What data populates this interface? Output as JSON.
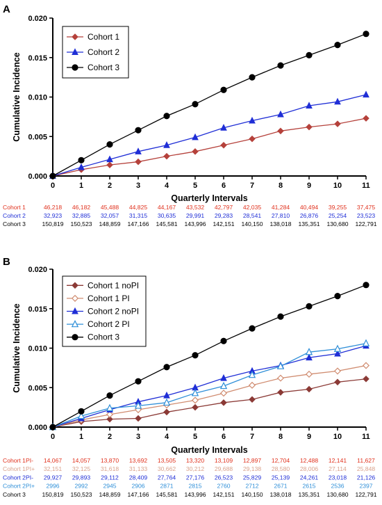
{
  "chart_data": [
    {
      "panel_label": "A",
      "type": "line",
      "xlabel": "Quarterly Intervals",
      "ylabel": "Cumulative Incidence",
      "x": [
        0,
        1,
        2,
        3,
        4,
        5,
        6,
        7,
        8,
        9,
        10,
        11
      ],
      "xlim": [
        0,
        11
      ],
      "ylim": [
        0,
        0.02
      ],
      "yticks": [
        "0.000",
        "0.005",
        "0.010",
        "0.015",
        "0.020"
      ],
      "yticks_values": [
        0,
        0.005,
        0.01,
        0.015,
        0.02
      ],
      "legend": "top-left",
      "series": [
        {
          "name": "Cohort 1",
          "color": "#b5413b",
          "marker": "diamond",
          "values": [
            0,
            0.0008,
            0.0014,
            0.0018,
            0.0025,
            0.0031,
            0.0039,
            0.0047,
            0.0057,
            0.0062,
            0.0066,
            0.0073
          ]
        },
        {
          "name": "Cohort 2",
          "color": "#1f2ed6",
          "marker": "triangle",
          "values": [
            0,
            0.0011,
            0.0021,
            0.0031,
            0.0039,
            0.0049,
            0.0061,
            0.007,
            0.0078,
            0.0089,
            0.0094,
            0.0103
          ]
        },
        {
          "name": "Cohort 3",
          "color": "#000000",
          "marker": "circle",
          "values": [
            0,
            0.002,
            0.004,
            0.0058,
            0.0076,
            0.0091,
            0.0109,
            0.0125,
            0.014,
            0.0153,
            0.0166,
            0.018
          ]
        }
      ],
      "table": {
        "rows": [
          {
            "label": "Cohort 1",
            "color": "#e0311d",
            "values": [
              "46,218",
              "46,182",
              "45,488",
              "44,825",
              "44,167",
              "43,532",
              "42,797",
              "42,035",
              "41,284",
              "40,494",
              "39,255",
              "37,475"
            ]
          },
          {
            "label": "Cohort 2",
            "color": "#1f2ed6",
            "values": [
              "32,923",
              "32,885",
              "32,057",
              "31,315",
              "30,635",
              "29,991",
              "29,283",
              "28,541",
              "27,810",
              "26,876",
              "25,254",
              "23,523"
            ]
          },
          {
            "label": "Cohort 3",
            "color": "#000000",
            "values": [
              "150,819",
              "150,523",
              "148,859",
              "147,166",
              "145,581",
              "143,996",
              "142,151",
              "140,150",
              "138,018",
              "135,351",
              "130,680",
              "122,791"
            ]
          }
        ]
      }
    },
    {
      "panel_label": "B",
      "type": "line",
      "xlabel": "Quarterly Intervals",
      "ylabel": "Cumulative Incidence",
      "x": [
        0,
        1,
        2,
        3,
        4,
        5,
        6,
        7,
        8,
        9,
        10,
        11
      ],
      "xlim": [
        0,
        11
      ],
      "ylim": [
        0,
        0.02
      ],
      "yticks": [
        "0.000",
        "0.005",
        "0.010",
        "0.015",
        "0.020"
      ],
      "yticks_values": [
        0,
        0.005,
        0.01,
        0.015,
        0.02
      ],
      "legend": "top-left",
      "series": [
        {
          "name": "Cohort 1 noPI",
          "color": "#8b3a36",
          "marker": "diamond",
          "values": [
            0,
            0.0007,
            0.001,
            0.0011,
            0.0019,
            0.0025,
            0.0031,
            0.0035,
            0.0044,
            0.0048,
            0.0057,
            0.0061
          ]
        },
        {
          "name": "Cohort 1 PI",
          "color": "#d08c70",
          "marker": "diamond-open",
          "values": [
            0,
            0.0009,
            0.0016,
            0.0022,
            0.0028,
            0.0034,
            0.0043,
            0.0053,
            0.0062,
            0.0067,
            0.0071,
            0.0078
          ]
        },
        {
          "name": "Cohort 2 noPI",
          "color": "#1f2ed6",
          "marker": "triangle",
          "values": [
            0,
            0.0011,
            0.0022,
            0.0032,
            0.004,
            0.005,
            0.0062,
            0.0071,
            0.0078,
            0.0088,
            0.0093,
            0.0103
          ]
        },
        {
          "name": "Cohort 2 PI",
          "color": "#2f8fd8",
          "marker": "triangle-open",
          "values": [
            0,
            0.0014,
            0.0024,
            0.0027,
            0.0031,
            0.0043,
            0.0052,
            0.0066,
            0.0077,
            0.0095,
            0.0099,
            0.0106
          ]
        },
        {
          "name": "Cohort 3",
          "color": "#000000",
          "marker": "circle",
          "values": [
            0,
            0.002,
            0.004,
            0.0058,
            0.0076,
            0.0091,
            0.0109,
            0.0125,
            0.014,
            0.0153,
            0.0166,
            0.018
          ]
        }
      ],
      "table": {
        "rows": [
          {
            "label": "Cohort 1PI-",
            "color": "#e0311d",
            "values": [
              "14,067",
              "14,057",
              "13,870",
              "13,692",
              "13,505",
              "13,320",
              "13,109",
              "12,897",
              "12,704",
              "12,488",
              "12,141",
              "11,627"
            ]
          },
          {
            "label": "Cohort 1PI+",
            "color": "#d9a08a",
            "values": [
              "32,151",
              "32,125",
              "31,618",
              "31,133",
              "30,662",
              "30,212",
              "29,688",
              "29,138",
              "28,580",
              "28,006",
              "27,114",
              "25,848"
            ]
          },
          {
            "label": "Cohort 2PI-",
            "color": "#1f2ed6",
            "values": [
              "29,927",
              "29,893",
              "29,112",
              "28,409",
              "27,764",
              "27,176",
              "26,523",
              "25,829",
              "25,139",
              "24,261",
              "23,018",
              "21,126"
            ]
          },
          {
            "label": "Cohort 2PI+",
            "color": "#2f8fd8",
            "values": [
              "2996",
              "2992",
              "2945",
              "2906",
              "2871",
              "2815",
              "2760",
              "2712",
              "2671",
              "2615",
              "2536",
              "2397"
            ]
          },
          {
            "label": "Cohort 3",
            "color": "#000000",
            "values": [
              "150,819",
              "150,523",
              "148,859",
              "147,166",
              "145,581",
              "143,996",
              "142,151",
              "140,150",
              "138,018",
              "135,351",
              "130,680",
              "122,791"
            ]
          }
        ]
      }
    }
  ]
}
